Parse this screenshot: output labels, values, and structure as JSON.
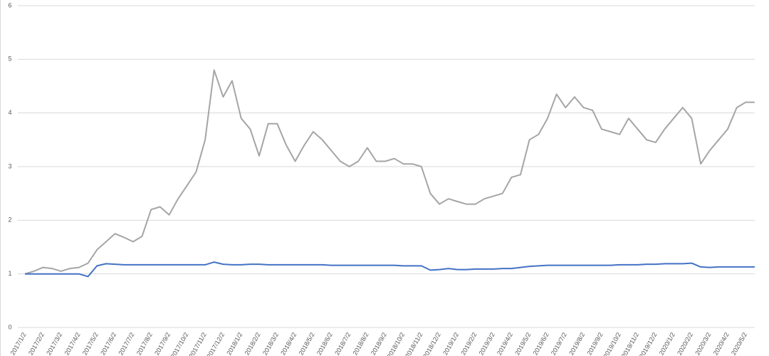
{
  "chart_data": {
    "type": "line",
    "categories": [
      "2017/1/2",
      null,
      "2017/2/2",
      null,
      "2017/3/2",
      null,
      "2017/4/2",
      null,
      "2017/5/2",
      null,
      "2017/6/2",
      null,
      "2017/7/2",
      null,
      "2017/8/2",
      null,
      "2017/9/2",
      null,
      "2017/10/2",
      null,
      "2017/11/2",
      null,
      "2017/12/2",
      null,
      "2018/1/2",
      null,
      "2018/2/2",
      null,
      "2018/3/2",
      null,
      "2018/4/2",
      null,
      "2018/5/2",
      null,
      "2018/6/2",
      null,
      "2018/7/2",
      null,
      "2018/8/2",
      null,
      "2018/9/2",
      null,
      "2018/10/2",
      null,
      "2018/11/2",
      null,
      "2018/12/2",
      null,
      "2019/1/2",
      null,
      "2019/2/2",
      null,
      "2019/3/2",
      null,
      "2019/4/2",
      null,
      "2019/5/2",
      null,
      "2019/6/2",
      null,
      "2019/7/2",
      null,
      "2019/8/2",
      null,
      "2019/9/2",
      null,
      "2019/10/2",
      null,
      "2019/11/2",
      null,
      "2019/12/2",
      null,
      "2020/1/2",
      null,
      "2020/2/2",
      null,
      "2020/3/2",
      null,
      "2020/4/2",
      null,
      "2020/5/2",
      null
    ],
    "series": [
      {
        "color": "#a5a5a5",
        "values": [
          1.0,
          1.05,
          1.12,
          1.1,
          1.05,
          1.1,
          1.12,
          1.2,
          1.45,
          1.6,
          1.75,
          1.68,
          1.6,
          1.7,
          2.2,
          2.25,
          2.1,
          2.4,
          2.65,
          2.9,
          3.5,
          4.8,
          4.3,
          4.6,
          3.9,
          3.7,
          3.2,
          3.8,
          3.8,
          3.4,
          3.1,
          3.4,
          3.65,
          3.5,
          3.3,
          3.1,
          3.0,
          3.1,
          3.35,
          3.1,
          3.1,
          3.15,
          3.05,
          3.05,
          3.0,
          2.5,
          2.3,
          2.4,
          2.35,
          2.3,
          2.3,
          2.4,
          2.45,
          2.5,
          2.8,
          2.85,
          3.5,
          3.6,
          3.9,
          4.35,
          4.1,
          4.3,
          4.1,
          4.05,
          3.7,
          3.65,
          3.6,
          3.9,
          3.7,
          3.5,
          3.45,
          3.7,
          3.9,
          4.1,
          3.9,
          3.05,
          3.3,
          3.5,
          3.7,
          4.1,
          4.2,
          4.2
        ]
      },
      {
        "color": "#4472c4",
        "values": [
          1.0,
          1.0,
          1.0,
          1.0,
          1.0,
          1.0,
          1.0,
          0.95,
          1.15,
          1.19,
          1.18,
          1.17,
          1.17,
          1.17,
          1.17,
          1.17,
          1.17,
          1.17,
          1.17,
          1.17,
          1.17,
          1.22,
          1.18,
          1.17,
          1.17,
          1.18,
          1.18,
          1.17,
          1.17,
          1.17,
          1.17,
          1.17,
          1.17,
          1.17,
          1.16,
          1.16,
          1.16,
          1.16,
          1.16,
          1.16,
          1.16,
          1.16,
          1.15,
          1.15,
          1.15,
          1.07,
          1.08,
          1.1,
          1.08,
          1.08,
          1.09,
          1.09,
          1.09,
          1.1,
          1.1,
          1.12,
          1.14,
          1.15,
          1.16,
          1.16,
          1.16,
          1.16,
          1.16,
          1.16,
          1.16,
          1.16,
          1.17,
          1.17,
          1.17,
          1.18,
          1.18,
          1.19,
          1.19,
          1.19,
          1.2,
          1.13,
          1.12,
          1.13,
          1.13,
          1.13,
          1.13,
          1.13
        ]
      }
    ],
    "ylim": [
      0,
      6
    ],
    "yticks": [
      0,
      1,
      2,
      3,
      4,
      5,
      6
    ],
    "grid": true
  }
}
